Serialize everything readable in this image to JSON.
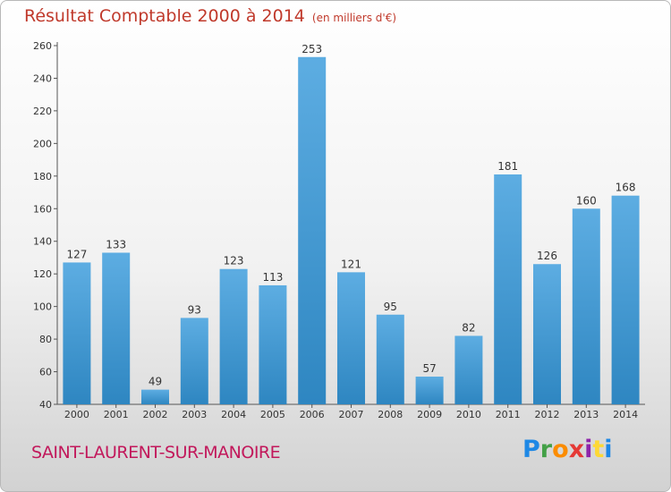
{
  "chart_data": {
    "type": "bar",
    "title": "Résultat Comptable 2000 à 2014",
    "unit": "(en milliers d'€)",
    "categories": [
      "2000",
      "2001",
      "2002",
      "2003",
      "2004",
      "2005",
      "2006",
      "2007",
      "2008",
      "2009",
      "2010",
      "2011",
      "2012",
      "2013",
      "2014"
    ],
    "values": [
      127,
      133,
      49,
      93,
      123,
      113,
      253,
      121,
      95,
      57,
      82,
      181,
      126,
      160,
      168
    ],
    "ylim": [
      40,
      260
    ],
    "yticks": [
      40,
      60,
      80,
      100,
      120,
      140,
      160,
      180,
      200,
      220,
      240,
      260
    ],
    "grid": false,
    "xlabel": "",
    "ylabel": ""
  },
  "commune": "SAINT-LAURENT-SUR-MANOIRE",
  "logo": {
    "text": "Proxiti",
    "letters": [
      {
        "ch": "P",
        "color": "#1e88e5"
      },
      {
        "ch": "r",
        "color": "#43a047"
      },
      {
        "ch": "o",
        "color": "#fb8c00"
      },
      {
        "ch": "x",
        "color": "#e53935"
      },
      {
        "ch": "i",
        "color": "#8e24aa"
      },
      {
        "ch": "t",
        "color": "#fdd835"
      },
      {
        "ch": "i",
        "color": "#1e88e5"
      }
    ]
  },
  "colors": {
    "bar_top": "#5dade2",
    "bar_bottom": "#2e86c1",
    "title": "#c0392b",
    "commune": "#c2185b"
  }
}
